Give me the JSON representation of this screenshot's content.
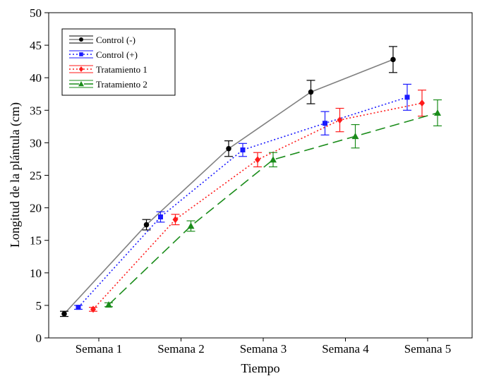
{
  "chart_data": {
    "type": "line",
    "xlabel": "Tiempo",
    "ylabel": "Longitud de la plántula (cm)",
    "ylim": [
      0,
      50
    ],
    "yticks": [
      0,
      5,
      10,
      15,
      20,
      25,
      30,
      35,
      40,
      45,
      50
    ],
    "categories": [
      "Semana 1",
      "Semana 2",
      "Semana 3",
      "Semana 4",
      "Semana 5"
    ],
    "grid": false,
    "legend_position": "top-left",
    "series": [
      {
        "name": "Control (-)",
        "color": "#000000",
        "line_color": "#808080",
        "marker": "circle",
        "dash": "solid",
        "values": [
          3.7,
          17.4,
          29.1,
          37.8,
          42.8
        ],
        "errors": [
          0.4,
          0.8,
          1.2,
          1.8,
          2.0
        ]
      },
      {
        "name": "Control (+)",
        "color": "#1a1aff",
        "line_color": "#1a1aff",
        "marker": "square",
        "dash": "dot",
        "values": [
          4.7,
          18.6,
          28.9,
          33.0,
          37.0
        ],
        "errors": [
          0.3,
          0.8,
          1.0,
          1.8,
          2.0
        ]
      },
      {
        "name": "Tratamiento 1",
        "color": "#ff1a1a",
        "line_color": "#ff1a1a",
        "marker": "diamond",
        "dash": "dot",
        "values": [
          4.4,
          18.2,
          27.4,
          33.5,
          36.1
        ],
        "errors": [
          0.3,
          0.8,
          1.1,
          1.8,
          2.0
        ]
      },
      {
        "name": "Tratamiento 2",
        "color": "#1a8c1a",
        "line_color": "#1a8c1a",
        "marker": "triangle",
        "dash": "dash",
        "values": [
          5.1,
          17.2,
          27.4,
          31.0,
          34.6
        ],
        "errors": [
          0.3,
          0.8,
          1.1,
          1.8,
          2.0
        ]
      }
    ]
  }
}
